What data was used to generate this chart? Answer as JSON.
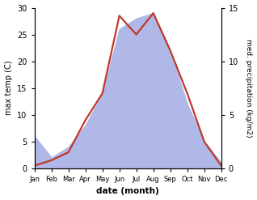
{
  "months": [
    "Jan",
    "Feb",
    "Mar",
    "Apr",
    "May",
    "Jun",
    "Jul",
    "Aug",
    "Sep",
    "Oct",
    "Nov",
    "Dec"
  ],
  "month_indices": [
    0,
    1,
    2,
    3,
    4,
    5,
    6,
    7,
    8,
    9,
    10,
    11
  ],
  "temperature": [
    0.5,
    1.5,
    3.0,
    9.0,
    14.0,
    28.5,
    25.0,
    29.0,
    22.0,
    14.0,
    5.0,
    0.5
  ],
  "precipitation": [
    3.0,
    1.0,
    2.0,
    4.0,
    7.0,
    13.0,
    14.0,
    14.5,
    11.0,
    6.0,
    2.5,
    0.5
  ],
  "temp_color": "#c0392b",
  "precip_fill_color": "#b0b8e8",
  "temp_ylim": [
    0,
    30
  ],
  "precip_ylim": [
    0,
    15
  ],
  "temp_yticks": [
    0,
    5,
    10,
    15,
    20,
    25,
    30
  ],
  "precip_yticks": [
    0,
    5,
    10,
    15
  ],
  "xlabel": "date (month)",
  "ylabel_left": "max temp (C)",
  "ylabel_right": "med. precipitation (kg/m2)",
  "bg_color": "#ffffff",
  "temp_linewidth": 1.6
}
